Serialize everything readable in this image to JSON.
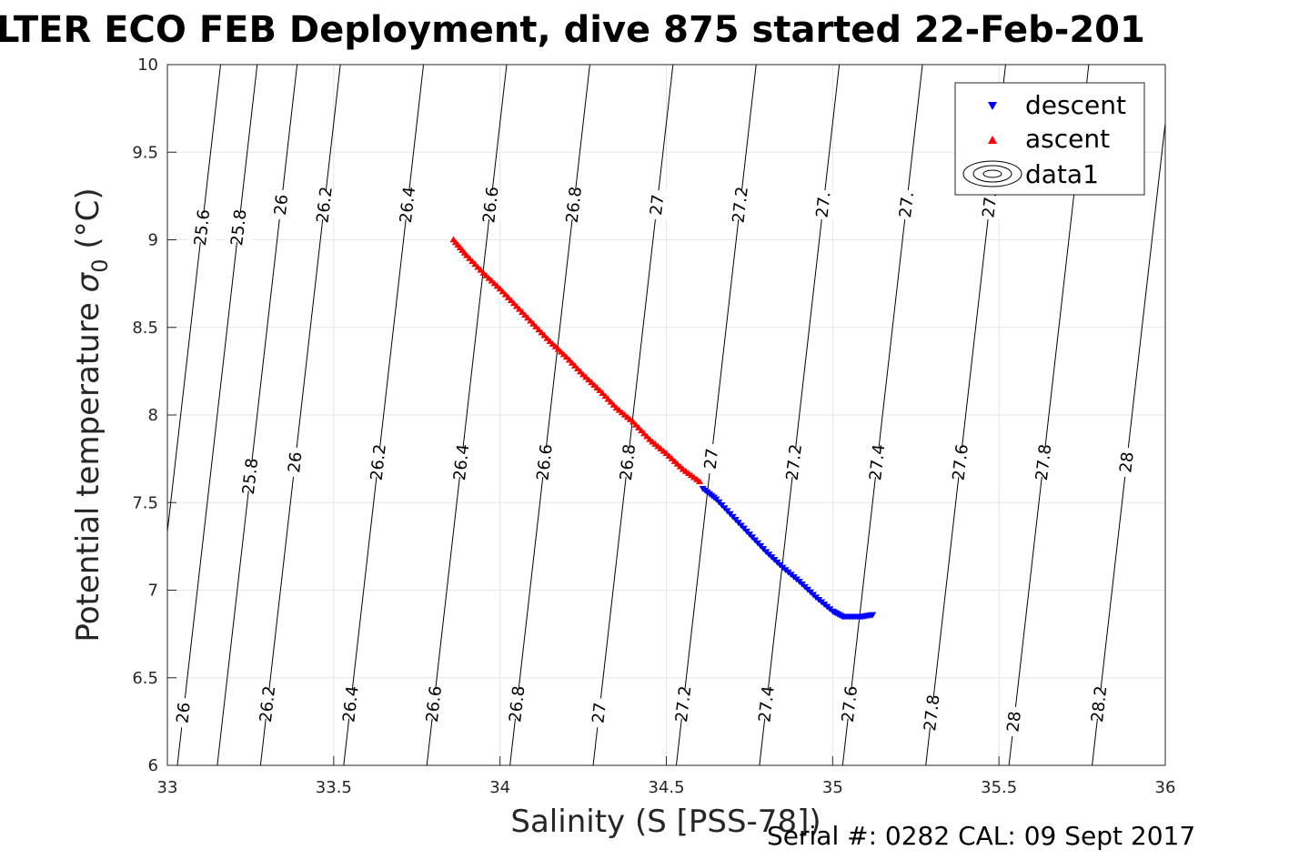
{
  "chart_data": {
    "type": "scatter",
    "title": "LTER ECO FEB Deployment, dive 875 started 22-Feb-201",
    "xlabel": "Salinity (S [PSS-78])",
    "ylabel_main": "Potential temperature ",
    "ylabel_symbol": "σ",
    "ylabel_sub": "0",
    "ylabel_unit": " (°C)",
    "xlim": [
      33,
      36
    ],
    "ylim": [
      6,
      10
    ],
    "xticks": [
      33,
      33.5,
      34,
      34.5,
      35,
      35.5,
      36
    ],
    "yticks": [
      6,
      6.5,
      7,
      7.5,
      8,
      8.5,
      9,
      9.5,
      10
    ],
    "xtick_labels": [
      "33",
      "33.5",
      "34",
      "34.5",
      "35",
      "35.5",
      "36"
    ],
    "ytick_labels": [
      "6",
      "6.5",
      "7",
      "7.5",
      "8",
      "8.5",
      "9",
      "9.5",
      "10"
    ],
    "grid": true,
    "legend_placement": "top-right",
    "series": [
      {
        "name": "descent",
        "marker": "triangle-down",
        "color": "#0000ff",
        "x": [
          34.61,
          34.65,
          34.7,
          34.75,
          34.8,
          34.85,
          34.9,
          34.95,
          35.0,
          35.03,
          35.06,
          35.09,
          35.12
        ],
        "y": [
          7.58,
          7.52,
          7.42,
          7.32,
          7.22,
          7.13,
          7.05,
          6.96,
          6.88,
          6.85,
          6.85,
          6.85,
          6.86
        ]
      },
      {
        "name": "ascent",
        "marker": "triangle-up",
        "color": "#ff0000",
        "x": [
          33.86,
          33.9,
          33.95,
          34.0,
          34.05,
          34.1,
          34.15,
          34.2,
          34.25,
          34.3,
          34.35,
          34.4,
          34.45,
          34.5,
          34.55,
          34.6
        ],
        "y": [
          9.0,
          8.91,
          8.81,
          8.72,
          8.62,
          8.52,
          8.42,
          8.33,
          8.23,
          8.14,
          8.04,
          7.96,
          7.86,
          7.78,
          7.69,
          7.62
        ]
      },
      {
        "name": "data1",
        "type": "contour"
      }
    ],
    "contours": [
      {
        "x_at_y6": 32.92,
        "labels": [
          {
            "text": "25.6",
            "y": 9.07
          }
        ]
      },
      {
        "x_at_y6": 33.03,
        "labels": [
          {
            "text": "25.8",
            "y": 9.07
          },
          {
            "text": "26",
            "y": 6.3
          }
        ]
      },
      {
        "x_at_y6": 33.15,
        "labels": [
          {
            "text": "26",
            "y": 9.2
          },
          {
            "text": "25.8",
            "y": 7.65
          }
        ]
      },
      {
        "x_at_y6": 33.28,
        "labels": [
          {
            "text": "26.2",
            "y": 9.2
          },
          {
            "text": "26",
            "y": 7.73
          },
          {
            "text": "26.2",
            "y": 6.35
          }
        ]
      },
      {
        "x_at_y6": 33.53,
        "labels": [
          {
            "text": "26.4",
            "y": 9.2
          },
          {
            "text": "26.2",
            "y": 7.73
          },
          {
            "text": "26.4",
            "y": 6.35
          }
        ]
      },
      {
        "x_at_y6": 33.78,
        "labels": [
          {
            "text": "26.6",
            "y": 9.2
          },
          {
            "text": "26.4",
            "y": 7.73
          },
          {
            "text": "26.6",
            "y": 6.35
          }
        ]
      },
      {
        "x_at_y6": 34.03,
        "labels": [
          {
            "text": "26.8",
            "y": 9.2
          },
          {
            "text": "26.6",
            "y": 7.73
          },
          {
            "text": "26.8",
            "y": 6.35
          }
        ]
      },
      {
        "x_at_y6": 34.28,
        "labels": [
          {
            "text": "27",
            "y": 9.2
          },
          {
            "text": "26.8",
            "y": 7.73
          },
          {
            "text": "27",
            "y": 6.3
          }
        ]
      },
      {
        "x_at_y6": 34.53,
        "labels": [
          {
            "text": "27.2",
            "y": 9.2
          },
          {
            "text": "27",
            "y": 7.75
          },
          {
            "text": "27.2",
            "y": 6.35
          }
        ]
      },
      {
        "x_at_y6": 34.78,
        "labels": [
          {
            "text": "27.",
            "y": 9.2
          },
          {
            "text": "27.2",
            "y": 7.73
          },
          {
            "text": "27.4",
            "y": 6.35
          }
        ]
      },
      {
        "x_at_y6": 35.03,
        "labels": [
          {
            "text": "27.",
            "y": 9.2
          },
          {
            "text": "27.4",
            "y": 7.73
          },
          {
            "text": "27.6",
            "y": 6.35
          }
        ]
      },
      {
        "x_at_y6": 35.28,
        "labels": [
          {
            "text": "27.",
            "y": 9.2
          },
          {
            "text": "27.6",
            "y": 7.73
          },
          {
            "text": "27.8",
            "y": 6.3
          }
        ]
      },
      {
        "x_at_y6": 35.53,
        "labels": [
          {
            "text": "27.8",
            "y": 7.73
          },
          {
            "text": "28",
            "y": 6.25
          }
        ]
      },
      {
        "x_at_y6": 35.78,
        "labels": [
          {
            "text": "28",
            "y": 7.73
          },
          {
            "text": "28.2",
            "y": 6.35
          }
        ]
      }
    ]
  },
  "footer": {
    "serial_text": "Serial #: 0282  CAL: 09 Sept 2017"
  }
}
